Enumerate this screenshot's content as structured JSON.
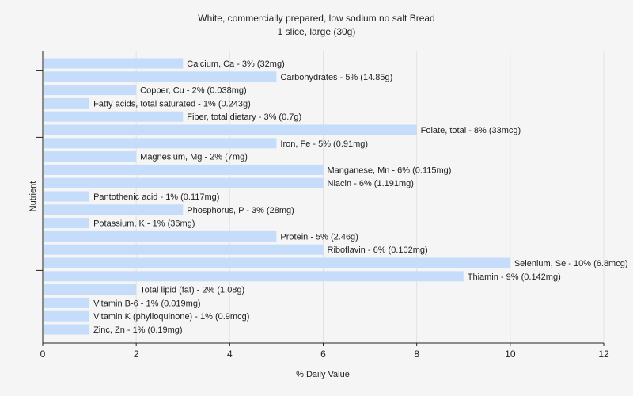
{
  "chart_data": {
    "type": "bar",
    "orientation": "horizontal",
    "title": "White, commercially prepared, low sodium no salt Bread",
    "subtitle": "1 slice, large (30g)",
    "xlabel": "% Daily Value",
    "ylabel": "Nutrient",
    "xlim": [
      0,
      12
    ],
    "xticks": [
      "0",
      "2",
      "4",
      "6",
      "8",
      "10",
      "12"
    ],
    "grid": "vertical",
    "bar_color": "#c5dcfb",
    "categories": [
      "Calcium, Ca",
      "Carbohydrates",
      "Copper, Cu",
      "Fatty acids, total saturated",
      "Fiber, total dietary",
      "Folate, total",
      "Iron, Fe",
      "Magnesium, Mg",
      "Manganese, Mn",
      "Niacin",
      "Pantothenic acid",
      "Phosphorus, P",
      "Potassium, K",
      "Protein",
      "Riboflavin",
      "Selenium, Se",
      "Thiamin",
      "Total lipid (fat)",
      "Vitamin B-6",
      "Vitamin K (phylloquinone)",
      "Zinc, Zn"
    ],
    "values": [
      3,
      5,
      2,
      1,
      3,
      8,
      5,
      2,
      6,
      6,
      1,
      3,
      1,
      5,
      6,
      10,
      9,
      2,
      1,
      1,
      1
    ],
    "labels": [
      "Calcium, Ca - 3% (32mg)",
      "Carbohydrates - 5% (14.85g)",
      "Copper, Cu - 2% (0.038mg)",
      "Fatty acids, total saturated - 1% (0.243g)",
      "Fiber, total dietary - 3% (0.7g)",
      "Folate, total - 8% (33mcg)",
      "Iron, Fe - 5% (0.91mg)",
      "Magnesium, Mg - 2% (7mg)",
      "Manganese, Mn - 6% (0.115mg)",
      "Niacin - 6% (1.191mg)",
      "Pantothenic acid - 1% (0.117mg)",
      "Phosphorus, P - 3% (28mg)",
      "Potassium, K - 1% (36mg)",
      "Protein - 5% (2.46g)",
      "Riboflavin - 6% (0.102mg)",
      "Selenium, Se - 10% (6.8mcg)",
      "Thiamin - 9% (0.142mg)",
      "Total lipid (fat) - 2% (1.08g)",
      "Vitamin B-6 - 1% (0.019mg)",
      "Vitamin K (phylloquinone) - 1% (0.9mcg)",
      "Zinc, Zn - 1% (0.19mg)"
    ]
  }
}
